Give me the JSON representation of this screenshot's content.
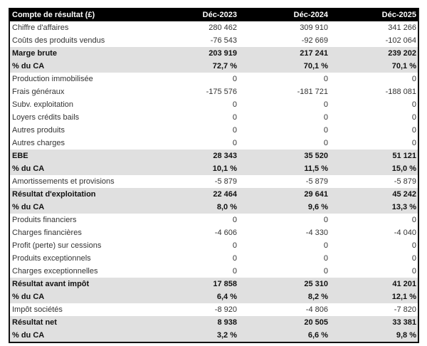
{
  "table": {
    "header": [
      "Compte de résultat (£)",
      "Déc-2023",
      "Déc-2024",
      "Déc-2025"
    ],
    "rows": [
      {
        "label": "Chiffre d'affaires",
        "values": [
          "280 462",
          "309 910",
          "341 266"
        ],
        "bold": false
      },
      {
        "label": "Coûts des produits vendus",
        "values": [
          "-76 543",
          "-92 669",
          "-102 064"
        ],
        "bold": false
      },
      {
        "label": "Marge brute",
        "values": [
          "203 919",
          "217 241",
          "239 202"
        ],
        "bold": true
      },
      {
        "label": "% du CA",
        "values": [
          "72,7 %",
          "70,1 %",
          "70,1 %"
        ],
        "bold": true
      },
      {
        "label": "Production immobilisée",
        "values": [
          "0",
          "0",
          "0"
        ],
        "bold": false
      },
      {
        "label": "Frais généraux",
        "values": [
          "-175 576",
          "-181 721",
          "-188 081"
        ],
        "bold": false
      },
      {
        "label": "Subv. exploitation",
        "values": [
          "0",
          "0",
          "0"
        ],
        "bold": false
      },
      {
        "label": "Loyers crédits bails",
        "values": [
          "0",
          "0",
          "0"
        ],
        "bold": false
      },
      {
        "label": "Autres produits",
        "values": [
          "0",
          "0",
          "0"
        ],
        "bold": false
      },
      {
        "label": "Autres charges",
        "values": [
          "0",
          "0",
          "0"
        ],
        "bold": false
      },
      {
        "label": "EBE",
        "values": [
          "28 343",
          "35 520",
          "51 121"
        ],
        "bold": true
      },
      {
        "label": "% du CA",
        "values": [
          "10,1 %",
          "11,5 %",
          "15,0 %"
        ],
        "bold": true
      },
      {
        "label": "Amortissements et provisions",
        "values": [
          "-5 879",
          "-5 879",
          "-5 879"
        ],
        "bold": false
      },
      {
        "label": "Résultat d'exploitation",
        "values": [
          "22 464",
          "29 641",
          "45 242"
        ],
        "bold": true
      },
      {
        "label": "% du CA",
        "values": [
          "8,0 %",
          "9,6 %",
          "13,3 %"
        ],
        "bold": true
      },
      {
        "label": "Produits financiers",
        "values": [
          "0",
          "0",
          "0"
        ],
        "bold": false
      },
      {
        "label": "Charges financières",
        "values": [
          "-4 606",
          "-4 330",
          "-4 040"
        ],
        "bold": false
      },
      {
        "label": "Profit (perte) sur cessions",
        "values": [
          "0",
          "0",
          "0"
        ],
        "bold": false
      },
      {
        "label": "Produits exceptionnels",
        "values": [
          "0",
          "0",
          "0"
        ],
        "bold": false
      },
      {
        "label": "Charges exceptionnelles",
        "values": [
          "0",
          "0",
          "0"
        ],
        "bold": false
      },
      {
        "label": "Résultat avant impôt",
        "values": [
          "17 858",
          "25 310",
          "41 201"
        ],
        "bold": true
      },
      {
        "label": "% du CA",
        "values": [
          "6,4 %",
          "8,2 %",
          "12,1 %"
        ],
        "bold": true
      },
      {
        "label": "Impôt sociétés",
        "values": [
          "-8 920",
          "-4 806",
          "-7 820"
        ],
        "bold": false
      },
      {
        "label": "Résultat net",
        "values": [
          "8 938",
          "20 505",
          "33 381"
        ],
        "bold": true
      },
      {
        "label": "% du CA",
        "values": [
          "3,2 %",
          "6,6 %",
          "9,8 %"
        ],
        "bold": true
      }
    ]
  }
}
